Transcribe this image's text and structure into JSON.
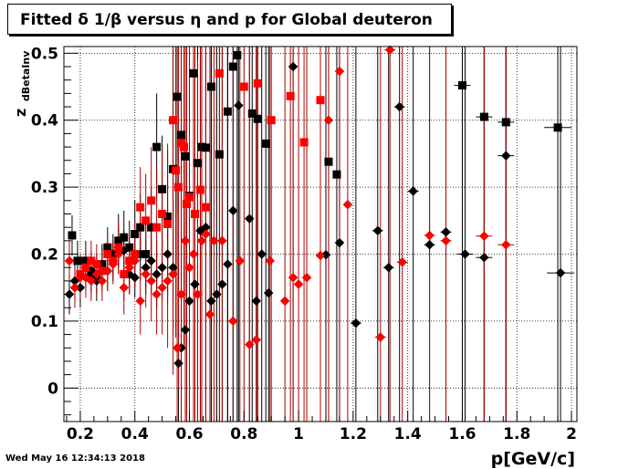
{
  "title": "Fitted δ 1/β versus η and p for Global deuteron",
  "timestamp": "Wed May 16 12:34:13 2018",
  "colors": {
    "series_black": "#000000",
    "series_red": "#ff0000",
    "errbar_red": "#b00000"
  },
  "chart_data": {
    "type": "scatter",
    "title": "Fitted δ 1/β versus η and p for Global deuteron",
    "xlabel": "p[GeV/c]",
    "ylabel": "z",
    "ylabel_sub": "dBetaInv",
    "xlim": [
      0.14,
      2.02
    ],
    "ylim": [
      -0.05,
      0.51
    ],
    "xticks": [
      0.2,
      0.4,
      0.6,
      0.8,
      1,
      1.2,
      1.4,
      1.6,
      1.8,
      2
    ],
    "xtick_labels": [
      "0.2",
      "0.4",
      "0.6",
      "0.8",
      "1",
      "1.2",
      "1.4",
      "1.6",
      "1.8",
      "2"
    ],
    "yticks": [
      0,
      0.1,
      0.2,
      0.3,
      0.4,
      0.5
    ],
    "ytick_labels": [
      "0",
      "0.1",
      "0.2",
      "0.3",
      "0.4",
      "0.5"
    ],
    "grid": true,
    "legend": "none",
    "series": [
      {
        "marker": "square",
        "color": "#000000",
        "x": [
          0.17,
          0.19,
          0.22,
          0.24,
          0.26,
          0.28,
          0.3,
          0.32,
          0.34,
          0.36,
          0.38,
          0.4,
          0.42,
          0.44,
          0.46,
          0.48,
          0.5,
          0.52,
          0.54,
          0.555,
          0.57,
          0.585,
          0.6,
          0.615,
          0.63,
          0.645,
          0.66,
          0.68,
          0.71,
          0.74,
          0.76,
          0.775,
          0.83,
          0.85,
          0.88,
          1.11,
          1.14,
          1.6,
          1.68,
          1.76,
          1.95
        ],
        "y": [
          0.228,
          0.19,
          0.19,
          0.175,
          0.17,
          0.185,
          0.21,
          0.2,
          0.22,
          0.225,
          0.21,
          0.23,
          0.24,
          0.2,
          0.24,
          0.36,
          0.297,
          0.256,
          0.327,
          0.435,
          0.378,
          0.346,
          0.287,
          0.47,
          0.336,
          0.36,
          0.359,
          0.45,
          0.349,
          0.413,
          0.48,
          0.497,
          0.41,
          0.402,
          0.365,
          0.338,
          0.319,
          0.452,
          0.405,
          0.397,
          0.389
        ],
        "y_err": [
          0.03,
          0.03,
          0.03,
          0.03,
          0.03,
          0.03,
          0.03,
          0.03,
          0.04,
          0.04,
          0.04,
          0.05,
          0.05,
          0.05,
          0.06,
          0.08,
          0.08,
          0.1,
          0.2,
          0.25,
          0.3,
          0.3,
          0.3,
          0.35,
          0.4,
          0.45,
          0.45,
          0.5,
          0.55,
          0.55,
          0.55,
          0.6,
          0.55,
          0.55,
          0.55,
          0.6,
          0.6,
          0.6,
          0.6,
          0.6,
          0.6
        ],
        "x_err": [
          0,
          0,
          0,
          0,
          0,
          0,
          0,
          0,
          0,
          0,
          0,
          0,
          0,
          0,
          0,
          0,
          0,
          0,
          0,
          0,
          0,
          0,
          0,
          0,
          0,
          0,
          0,
          0,
          0,
          0,
          0,
          0,
          0,
          0,
          0,
          0,
          0,
          0.03,
          0.03,
          0.03,
          0.05
        ]
      },
      {
        "marker": "diamond",
        "color": "#000000",
        "x": [
          0.16,
          0.18,
          0.2,
          0.22,
          0.24,
          0.26,
          0.28,
          0.3,
          0.32,
          0.34,
          0.36,
          0.38,
          0.4,
          0.42,
          0.44,
          0.46,
          0.48,
          0.5,
          0.52,
          0.54,
          0.56,
          0.57,
          0.585,
          0.6,
          0.62,
          0.64,
          0.66,
          0.68,
          0.7,
          0.72,
          0.74,
          0.76,
          0.78,
          0.82,
          0.845,
          0.865,
          0.89,
          0.98,
          1.1,
          1.15,
          1.21,
          1.29,
          1.33,
          1.37,
          1.42,
          1.48,
          1.54,
          1.61,
          1.68,
          1.76,
          1.96
        ],
        "y": [
          0.14,
          0.16,
          0.15,
          0.18,
          0.17,
          0.16,
          0.18,
          0.175,
          0.19,
          0.21,
          0.205,
          0.17,
          0.165,
          0.2,
          0.18,
          0.19,
          0.17,
          0.18,
          0.2,
          0.18,
          0.037,
          0.06,
          0.087,
          0.13,
          0.155,
          0.235,
          0.24,
          0.13,
          0.14,
          0.155,
          0.185,
          0.265,
          0.422,
          0.253,
          0.13,
          0.2,
          0.142,
          0.48,
          0.199,
          0.217,
          0.097,
          0.235,
          0.18,
          0.42,
          0.294,
          0.214,
          0.233,
          0.2,
          0.195,
          0.347,
          0.172
        ],
        "y_err": [
          0.03,
          0.03,
          0.03,
          0.03,
          0.03,
          0.03,
          0.03,
          0.03,
          0.03,
          0.03,
          0.03,
          0.03,
          0.03,
          0.04,
          0.04,
          0.05,
          0.05,
          0.05,
          0.06,
          0.1,
          0.15,
          0.2,
          0.25,
          0.3,
          0.3,
          0.35,
          0.4,
          0.45,
          0.5,
          0.5,
          0.55,
          0.55,
          0.6,
          0.5,
          0.55,
          0.55,
          0.6,
          0.6,
          0.6,
          0.6,
          0.6,
          0.6,
          0.6,
          0.6,
          0.6,
          0.6,
          0.6,
          0.6,
          0.6,
          0.6,
          0.6
        ],
        "x_err": [
          0,
          0,
          0,
          0,
          0,
          0,
          0,
          0,
          0,
          0,
          0,
          0,
          0,
          0,
          0,
          0,
          0,
          0,
          0,
          0,
          0,
          0,
          0,
          0,
          0,
          0,
          0,
          0,
          0,
          0,
          0,
          0,
          0,
          0,
          0,
          0,
          0,
          0,
          0,
          0,
          0.02,
          0.02,
          0.02,
          0.02,
          0.02,
          0.02,
          0.02,
          0.03,
          0.03,
          0.03,
          0.05
        ]
      },
      {
        "marker": "square",
        "color": "#ff0000",
        "x": [
          0.2,
          0.22,
          0.24,
          0.26,
          0.28,
          0.3,
          0.32,
          0.34,
          0.36,
          0.38,
          0.4,
          0.42,
          0.44,
          0.46,
          0.48,
          0.5,
          0.52,
          0.54,
          0.55,
          0.56,
          0.57,
          0.58,
          0.59,
          0.6,
          0.62,
          0.64,
          0.66,
          0.71,
          0.8,
          0.85,
          0.9,
          0.97,
          1.02,
          1.08
        ],
        "y": [
          0.17,
          0.18,
          0.19,
          0.185,
          0.175,
          0.2,
          0.19,
          0.21,
          0.17,
          0.19,
          0.2,
          0.27,
          0.25,
          0.28,
          0.24,
          0.26,
          0.245,
          0.4,
          0.325,
          0.3,
          0.366,
          0.36,
          0.275,
          0.285,
          0.26,
          0.296,
          0.27,
          0.47,
          0.45,
          0.455,
          0.4,
          0.436,
          0.367,
          0.43
        ],
        "y_err": [
          0.03,
          0.03,
          0.03,
          0.03,
          0.03,
          0.03,
          0.03,
          0.04,
          0.04,
          0.04,
          0.05,
          0.06,
          0.07,
          0.08,
          0.09,
          0.1,
          0.12,
          0.2,
          0.25,
          0.3,
          0.3,
          0.3,
          0.35,
          0.35,
          0.4,
          0.45,
          0.45,
          0.55,
          0.6,
          0.6,
          0.6,
          0.6,
          0.6,
          0.6
        ],
        "x_err": [
          0,
          0,
          0,
          0,
          0,
          0,
          0,
          0,
          0,
          0,
          0,
          0,
          0,
          0,
          0,
          0,
          0,
          0,
          0,
          0,
          0,
          0,
          0,
          0,
          0,
          0,
          0,
          0,
          0,
          0,
          0,
          0,
          0,
          0
        ]
      },
      {
        "marker": "diamond",
        "color": "#ff0000",
        "x": [
          0.16,
          0.18,
          0.2,
          0.22,
          0.24,
          0.26,
          0.28,
          0.3,
          0.32,
          0.34,
          0.36,
          0.38,
          0.4,
          0.42,
          0.44,
          0.46,
          0.48,
          0.5,
          0.52,
          0.54,
          0.555,
          0.57,
          0.585,
          0.6,
          0.615,
          0.63,
          0.645,
          0.66,
          0.675,
          0.69,
          0.72,
          0.76,
          0.785,
          0.82,
          0.845,
          0.895,
          0.95,
          0.98,
          1.0,
          1.03,
          1.08,
          1.11,
          1.15,
          1.18,
          1.3,
          1.38,
          1.48,
          1.54,
          1.68,
          1.76
        ],
        "y": [
          0.19,
          0.15,
          0.165,
          0.165,
          0.16,
          0.17,
          0.16,
          0.175,
          0.185,
          0.2,
          0.15,
          0.18,
          0.19,
          0.13,
          0.17,
          0.16,
          0.14,
          0.15,
          0.16,
          0.17,
          0.06,
          0.14,
          0.22,
          0.18,
          0.2,
          0.14,
          0.22,
          0.23,
          0.11,
          0.22,
          0.22,
          0.1,
          0.19,
          0.065,
          0.072,
          0.19,
          0.13,
          0.165,
          0.155,
          0.165,
          0.198,
          0.4,
          0.473,
          0.274,
          0.076,
          0.188,
          0.228,
          0.22,
          0.227,
          0.214
        ],
        "y_err": [
          0.03,
          0.03,
          0.03,
          0.03,
          0.03,
          0.03,
          0.03,
          0.03,
          0.03,
          0.03,
          0.04,
          0.04,
          0.04,
          0.05,
          0.05,
          0.06,
          0.06,
          0.07,
          0.1,
          0.15,
          0.2,
          0.25,
          0.3,
          0.3,
          0.35,
          0.35,
          0.4,
          0.45,
          0.45,
          0.5,
          0.5,
          0.55,
          0.55,
          0.55,
          0.55,
          0.6,
          0.6,
          0.6,
          0.6,
          0.6,
          0.6,
          0.6,
          0.6,
          0.6,
          0.6,
          0.6,
          0.6,
          0.6,
          0.6,
          0.6
        ],
        "x_err": [
          0,
          0,
          0,
          0,
          0,
          0,
          0,
          0,
          0,
          0,
          0,
          0,
          0,
          0,
          0,
          0,
          0,
          0,
          0,
          0,
          0,
          0,
          0,
          0,
          0,
          0,
          0,
          0,
          0,
          0,
          0,
          0,
          0,
          0,
          0,
          0,
          0,
          0,
          0,
          0,
          0,
          0,
          0,
          0,
          0.02,
          0.02,
          0.02,
          0.02,
          0.03,
          0.03
        ]
      },
      {
        "marker": "diamond",
        "color": "#ff0000",
        "x": [
          1.335
        ],
        "y": [
          0.505
        ],
        "y_err": [
          0.6
        ],
        "x_err": [
          0.02
        ]
      }
    ]
  }
}
